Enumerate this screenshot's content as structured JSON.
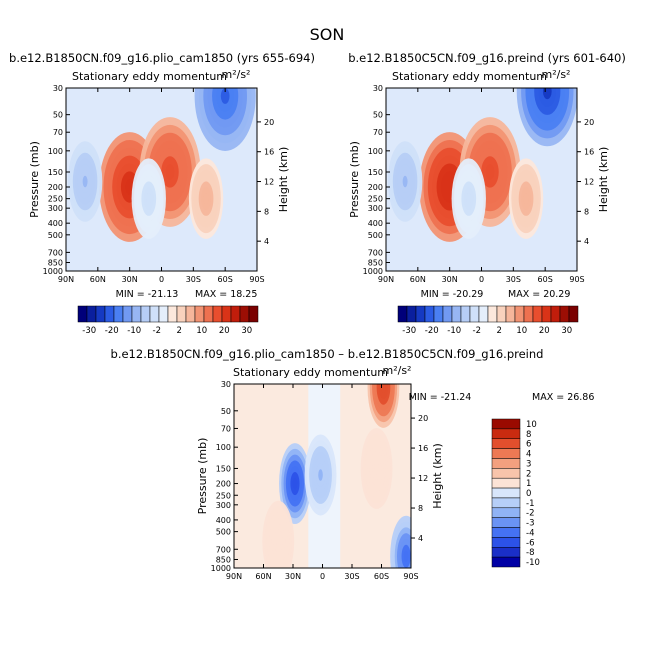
{
  "page_title": "SON",
  "units": "m²/s²",
  "chart_data": [
    {
      "type": "heatmap",
      "id": "plio",
      "case_title": "b.e12.B1850CN.f09_g16.plio_cam1850 (yrs 655-694)",
      "title": "Stationary eddy momentum",
      "xlabel": "",
      "ylabel": "Pressure (mb)",
      "y2label": "Height (km)",
      "x_ticks": [
        "90N",
        "60N",
        "30N",
        "0",
        "30S",
        "60S",
        "90S"
      ],
      "y_ticks": [
        "30",
        "50",
        "70",
        "100",
        "150",
        "200",
        "250",
        "300",
        "400",
        "500",
        "700",
        "850",
        "1000"
      ],
      "y2_ticks": [
        "4",
        "8",
        "12",
        "16",
        "20"
      ],
      "min_label": "MIN = -21.13",
      "max_label": "MAX = 18.25",
      "min": -21.13,
      "max": 18.25,
      "features": [
        {
          "lat": 30,
          "p": 200,
          "value": 18
        },
        {
          "lat": -8,
          "p": 150,
          "value": 12
        },
        {
          "lat": -60,
          "p": 35,
          "value": -15
        },
        {
          "lat": 72,
          "p": 180,
          "value": -4
        },
        {
          "lat": -42,
          "p": 250,
          "value": 3
        },
        {
          "lat": 12,
          "p": 250,
          "value": -1.5
        }
      ],
      "colorbar": {
        "labels": [
          "-30",
          "-20",
          "-10",
          "-2",
          "2",
          "10",
          "20",
          "30"
        ]
      }
    },
    {
      "type": "heatmap",
      "id": "preind",
      "case_title": "b.e12.B1850C5CN.f09_g16.preind (yrs 601-640)",
      "title": "Stationary eddy momentum",
      "xlabel": "",
      "ylabel": "Pressure (mb)",
      "y2label": "Height (km)",
      "x_ticks": [
        "90N",
        "60N",
        "30N",
        "0",
        "30S",
        "60S",
        "90S"
      ],
      "y_ticks": [
        "30",
        "50",
        "70",
        "100",
        "150",
        "200",
        "250",
        "300",
        "400",
        "500",
        "700",
        "850",
        "1000"
      ],
      "y2_ticks": [
        "4",
        "8",
        "12",
        "16",
        "20"
      ],
      "min_label": "MIN = -20.29",
      "max_label": "MAX = 20.29",
      "min": -20.29,
      "max": 20.29,
      "features": [
        {
          "lat": 30,
          "p": 200,
          "value": 20
        },
        {
          "lat": -8,
          "p": 150,
          "value": 13
        },
        {
          "lat": -62,
          "p": 32,
          "value": -20
        },
        {
          "lat": 72,
          "p": 180,
          "value": -4
        },
        {
          "lat": -42,
          "p": 250,
          "value": 3
        },
        {
          "lat": 12,
          "p": 250,
          "value": -1.5
        }
      ],
      "colorbar": {
        "labels": [
          "-30",
          "-20",
          "-10",
          "-2",
          "2",
          "10",
          "20",
          "30"
        ]
      }
    },
    {
      "type": "heatmap",
      "id": "diff",
      "case_title": "b.e12.B1850CN.f09_g16.plio_cam1850 – b.e12.B1850C5CN.f09_g16.preind",
      "title": "Stationary eddy momentum",
      "xlabel": "",
      "ylabel": "Pressure (mb)",
      "y2label": "Height (km)",
      "x_ticks": [
        "90N",
        "60N",
        "30N",
        "0",
        "30S",
        "60S",
        "90S"
      ],
      "y_ticks": [
        "30",
        "50",
        "70",
        "100",
        "150",
        "200",
        "250",
        "300",
        "400",
        "500",
        "700",
        "850",
        "1000"
      ],
      "y2_ticks": [
        "4",
        "8",
        "12",
        "16",
        "20"
      ],
      "min_label": "MIN = -21.24",
      "max_label": "MAX = 26.86",
      "min": -21.24,
      "max": 26.86,
      "features": [
        {
          "lat": 28,
          "p": 200,
          "value": -7
        },
        {
          "lat": -62,
          "p": 32,
          "value": 6
        },
        {
          "lat": 2,
          "p": 170,
          "value": -2
        },
        {
          "lat": -55,
          "p": 150,
          "value": 1
        },
        {
          "lat": 45,
          "p": 600,
          "value": 1
        },
        {
          "lat": -85,
          "p": 800,
          "value": -5
        }
      ],
      "colorbar": {
        "labels": [
          "10",
          "8",
          "6",
          "4",
          "3",
          "2",
          "1",
          "0",
          "-1",
          "-2",
          "-3",
          "-4",
          "-6",
          "-8",
          "-10"
        ]
      }
    }
  ]
}
